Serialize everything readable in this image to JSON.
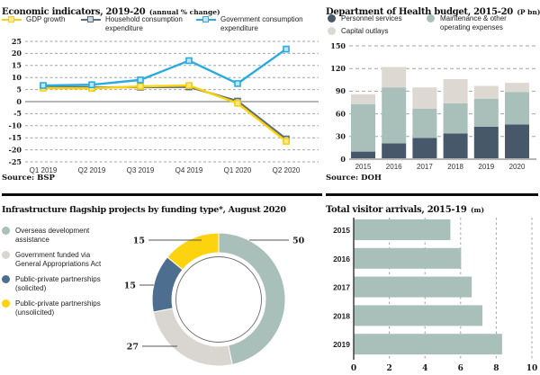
{
  "panels": {
    "economic": {
      "title": "Economic indicators, 2019-20",
      "note": "(annual % change)",
      "source": "Source: BSP"
    },
    "doh": {
      "title": "Department of Health budget, 2015-20",
      "note": "(P bn)",
      "source": "Source: DOH"
    },
    "infra": {
      "title": "Infrastructure flagship projects by funding type*, August 2020"
    },
    "visitors": {
      "title": "Total visitor arrivals, 2015-19",
      "note": "(m)"
    }
  },
  "chart_data": [
    {
      "type": "line",
      "title": "Economic indicators, 2019-20 (annual % change)",
      "categories": [
        "Q1 2019",
        "Q2 2019",
        "Q3 2019",
        "Q4 2019",
        "Q1 2020",
        "Q2 2020"
      ],
      "series": [
        {
          "name": "GDP growth",
          "color": "#fed108",
          "marker_fill": "#ffe98e",
          "values": [
            5.6,
            5.5,
            6.3,
            6.7,
            -0.7,
            -16.5
          ]
        },
        {
          "name": "Household consumption expenditure",
          "color": "#5c6e7e",
          "marker_fill": "#cfd8de",
          "values": [
            6.2,
            5.9,
            6.0,
            6.1,
            0.2,
            -15.5
          ]
        },
        {
          "name": "Government consumption expenditure",
          "color": "#29abe2",
          "marker_fill": "#bfe5f8",
          "values": [
            6.7,
            7.0,
            9.0,
            17.0,
            7.5,
            21.8
          ]
        }
      ],
      "ylim": [
        -25,
        25
      ],
      "ytick_step": 5,
      "grid": "dashed-horizontal",
      "legend_position": "top",
      "source": "Source: BSP"
    },
    {
      "type": "bar",
      "stacked": true,
      "title": "Department of Health budget, 2015-20 (P bn)",
      "categories": [
        "2015",
        "2016",
        "2017",
        "2018",
        "2019",
        "2020"
      ],
      "series": [
        {
          "name": "Personnel services",
          "color": "#47586b",
          "values": [
            10,
            21,
            28,
            34,
            43,
            46
          ]
        },
        {
          "name": "Maintenance & other operating expenses",
          "color": "#a8bfba",
          "values": [
            63,
            74,
            39,
            40,
            37,
            43
          ]
        },
        {
          "name": "Capital outlays",
          "color": "#ddd8d2",
          "values": [
            13,
            27,
            28,
            32,
            17,
            12
          ]
        }
      ],
      "ylim": [
        0,
        150
      ],
      "ytick_step": 30,
      "grid": "dashed-horizontal",
      "legend_position": "top",
      "source": "Source: DOH"
    },
    {
      "type": "pie",
      "donut": true,
      "title": "Infrastructure flagship projects by funding type*, August 2020",
      "labels": [
        "Overseas development assistance",
        "Government funded via General Appropriations Act",
        "Public-private partnerships (solicited)",
        "Public-private partnerships (unsolicited)"
      ],
      "values": [
        50,
        27,
        15,
        15
      ],
      "colors": [
        "#a8bfba",
        "#d9d5cf",
        "#4d6e8e",
        "#fdd20e"
      ],
      "start_angle_deg": 0,
      "direction": "clockwise-from-top",
      "legend_position": "left"
    },
    {
      "type": "bar",
      "orientation": "horizontal",
      "title": "Total visitor arrivals, 2015-19 (m)",
      "categories": [
        "2015",
        "2016",
        "2017",
        "2018",
        "2019"
      ],
      "values": [
        5.4,
        6.0,
        6.6,
        7.2,
        8.3
      ],
      "color": "#a8bfba",
      "xlim": [
        0,
        10
      ],
      "xtick_step": 2,
      "grid": "dashed-vertical"
    }
  ],
  "style_colors": {
    "gridline": "#a3a3a3",
    "zero_line": "#8a8a8a",
    "baseline": "#b5b5b5",
    "axis": "#4a4a4a",
    "leader_line": "#555555",
    "divider": "#0d0d0d"
  }
}
